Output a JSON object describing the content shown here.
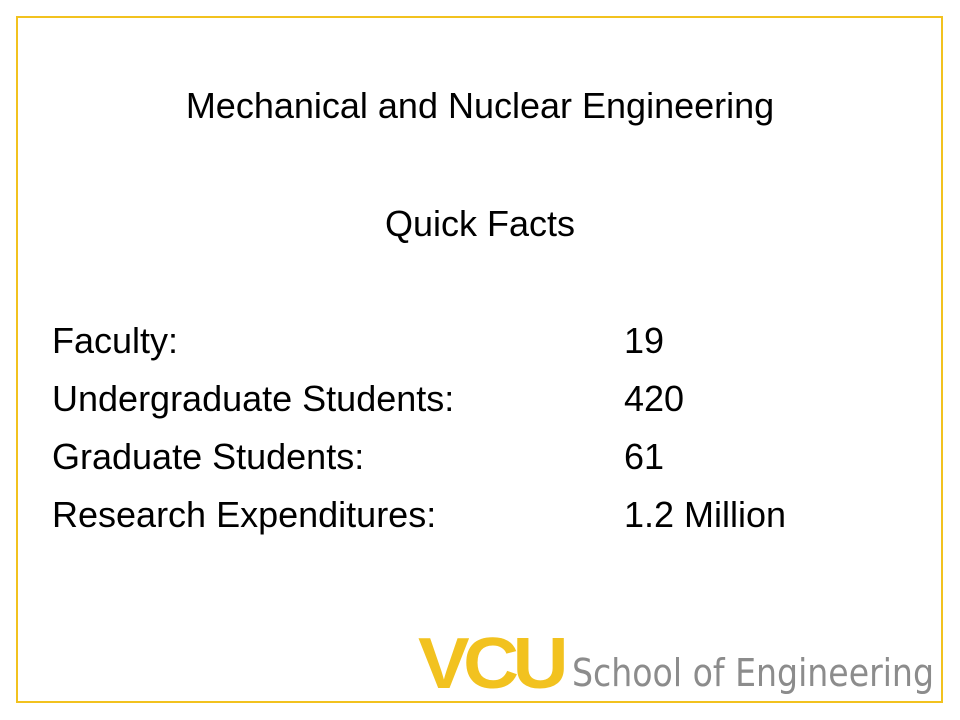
{
  "title": "Mechanical and Nuclear Engineering",
  "subtitle": "Quick Facts",
  "facts": [
    {
      "label": "Faculty:",
      "value": "19"
    },
    {
      "label": "Undergraduate Students:",
      "value": "420"
    },
    {
      "label": "Graduate Students:",
      "value": "61"
    },
    {
      "label": "Research Expenditures:",
      "value": "1.2 Million"
    }
  ],
  "logo": {
    "mark": "VCU",
    "text": "School of Engineering"
  },
  "colors": {
    "border": "#f2c21f",
    "brand_gold": "#f2c21f",
    "logo_gray": "#8c8c8c",
    "text": "#000000"
  }
}
